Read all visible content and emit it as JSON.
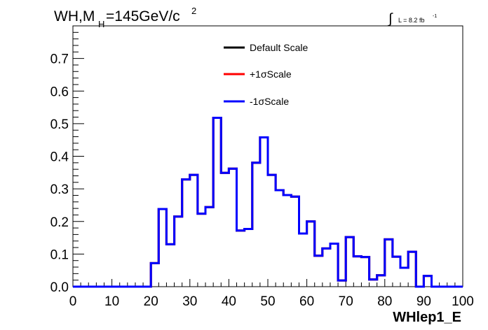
{
  "header": {
    "title_main": "WH,M",
    "title_sub": "H",
    "title_rest": "=145GeV/c",
    "title_sup": "2",
    "lumi_symbol": "∫",
    "lumi_text": "L = 8.2 fb",
    "lumi_sup": "-1"
  },
  "colors": {
    "default": "#000000",
    "plus": "#ff0000",
    "minus": "#0000ff"
  },
  "chart_data": {
    "type": "line",
    "style": "step-histogram",
    "xlabel": "WHlep1_E",
    "ylabel": "",
    "xlim": [
      0,
      100
    ],
    "ylim": [
      0,
      0.8
    ],
    "x_ticks": [
      "0",
      "10",
      "20",
      "30",
      "40",
      "50",
      "60",
      "70",
      "80",
      "90",
      "100"
    ],
    "y_ticks": [
      "0.0",
      "0.1",
      "0.2",
      "0.3",
      "0.4",
      "0.5",
      "0.6",
      "0.7"
    ],
    "bin_edges": [
      0,
      2,
      4,
      6,
      8,
      10,
      12,
      14,
      16,
      18,
      20,
      22,
      24,
      26,
      28,
      30,
      32,
      34,
      36,
      38,
      40,
      42,
      44,
      46,
      48,
      50,
      52,
      54,
      56,
      58,
      60,
      62,
      64,
      66,
      68,
      70,
      72,
      74,
      76,
      78,
      80,
      82,
      84,
      86,
      88,
      90,
      92,
      94,
      96,
      98,
      100
    ],
    "legend_position": "top-center",
    "series": [
      {
        "name": "Default Scale",
        "color": "#000000",
        "values": [
          0,
          0,
          0,
          0,
          0,
          0,
          0,
          0,
          0,
          0,
          0.072,
          0.238,
          0.13,
          0.215,
          0.329,
          0.343,
          0.224,
          0.244,
          0.518,
          0.349,
          0.362,
          0.172,
          0.177,
          0.38,
          0.458,
          0.343,
          0.296,
          0.281,
          0.276,
          0.163,
          0.2,
          0.095,
          0.117,
          0.132,
          0.019,
          0.152,
          0.093,
          0.091,
          0.022,
          0.035,
          0.145,
          0.092,
          0.058,
          0.107,
          0,
          0.033,
          0,
          0,
          0,
          0
        ]
      },
      {
        "name": "+1σScale",
        "color": "#ff0000",
        "values": [
          0,
          0,
          0,
          0,
          0,
          0,
          0,
          0,
          0,
          0,
          0.072,
          0.238,
          0.13,
          0.215,
          0.329,
          0.343,
          0.224,
          0.244,
          0.518,
          0.349,
          0.362,
          0.172,
          0.177,
          0.38,
          0.458,
          0.343,
          0.296,
          0.281,
          0.276,
          0.163,
          0.2,
          0.095,
          0.117,
          0.132,
          0.019,
          0.152,
          0.093,
          0.091,
          0.022,
          0.035,
          0.145,
          0.092,
          0.058,
          0.107,
          0,
          0.033,
          0,
          0,
          0,
          0
        ]
      },
      {
        "name": "-1σScale",
        "color": "#0000ff",
        "values": [
          0,
          0,
          0,
          0,
          0,
          0,
          0,
          0,
          0,
          0,
          0.072,
          0.238,
          0.13,
          0.215,
          0.329,
          0.343,
          0.224,
          0.244,
          0.518,
          0.349,
          0.362,
          0.172,
          0.177,
          0.38,
          0.458,
          0.343,
          0.296,
          0.281,
          0.276,
          0.163,
          0.2,
          0.095,
          0.117,
          0.132,
          0.019,
          0.152,
          0.093,
          0.091,
          0.022,
          0.035,
          0.145,
          0.092,
          0.058,
          0.107,
          0,
          0.033,
          0,
          0,
          0,
          0
        ]
      }
    ]
  }
}
